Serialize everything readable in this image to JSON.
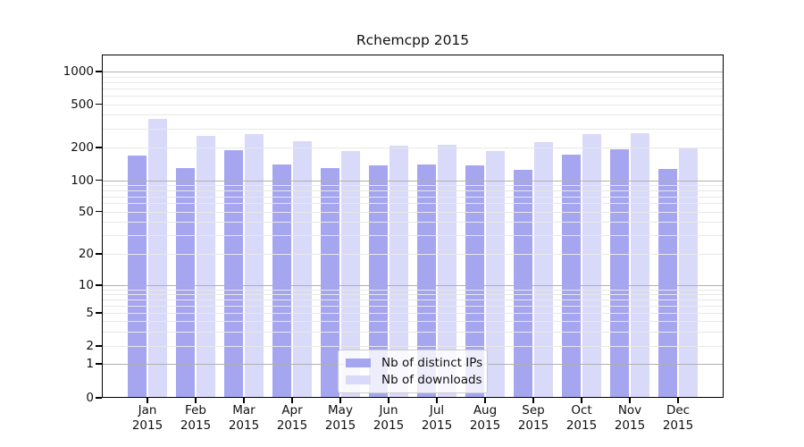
{
  "title": "Rchemcpp 2015",
  "legend": {
    "items": [
      {
        "label": "Nb of distinct IPs",
        "color": "#a5a5f0"
      },
      {
        "label": "Nb of downloads",
        "color": "#d9d9f9"
      }
    ]
  },
  "chart_data": {
    "type": "bar",
    "title": "Rchemcpp 2015",
    "xlabel": "",
    "ylabel": "",
    "yscale": "log-like (symlog with 0 baseline)",
    "grid": "horizontal major and minor gridlines, drawn over bars",
    "legend_position": "lower center",
    "categories": [
      "Jan 2015",
      "Feb 2015",
      "Mar 2015",
      "Apr 2015",
      "May 2015",
      "Jun 2015",
      "Jul 2015",
      "Aug 2015",
      "Sep 2015",
      "Oct 2015",
      "Nov 2015",
      "Dec 2015"
    ],
    "x_tick_months": [
      "Jan",
      "Feb",
      "Mar",
      "Apr",
      "May",
      "Jun",
      "Jul",
      "Aug",
      "Sep",
      "Oct",
      "Nov",
      "Dec"
    ],
    "x_tick_year": "2015",
    "series": [
      {
        "name": "Nb of distinct IPs",
        "color": "#a5a5f0",
        "values": [
          170,
          129,
          189,
          139,
          130,
          138,
          139,
          136,
          125,
          173,
          194,
          126
        ]
      },
      {
        "name": "Nb of downloads",
        "color": "#d9d9f9",
        "values": [
          365,
          256,
          266,
          227,
          184,
          208,
          210,
          184,
          222,
          268,
          272,
          198
        ]
      }
    ],
    "y_ticks": [
      {
        "label": "1000",
        "value": 1000
      },
      {
        "label": "500",
        "value": 500
      },
      {
        "label": "200",
        "value": 200
      },
      {
        "label": "100",
        "value": 100
      },
      {
        "label": "50",
        "value": 50
      },
      {
        "label": "20",
        "value": 20
      },
      {
        "label": "10",
        "value": 10
      },
      {
        "label": "5",
        "value": 5
      },
      {
        "label": "2",
        "value": 2
      },
      {
        "label": "1",
        "value": 1
      },
      {
        "label": "0",
        "value": 0
      }
    ],
    "ylim": [
      0,
      1430
    ]
  }
}
